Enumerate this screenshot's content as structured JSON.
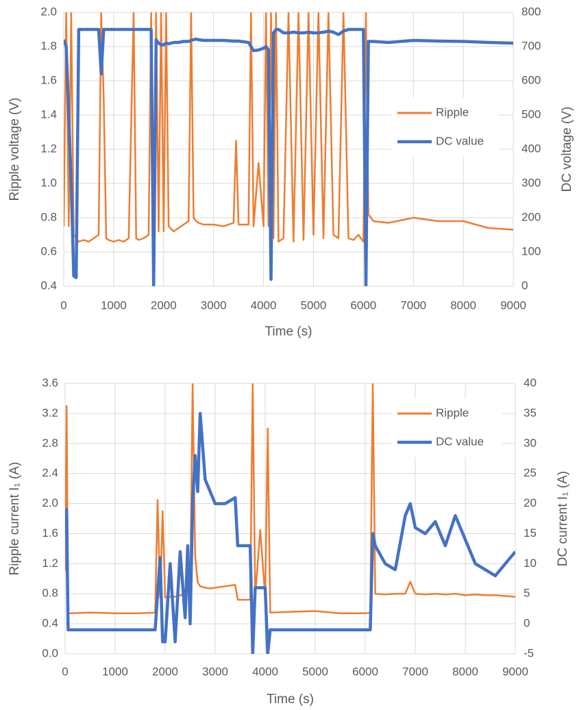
{
  "chart_data": [
    {
      "type": "line",
      "x_label": "Time (s)",
      "y_label": "Ripple voltage (V)",
      "y2_label": "DC voltage (V)",
      "xlim": [
        0,
        9000
      ],
      "xticks": [
        0,
        1000,
        2000,
        3000,
        4000,
        5000,
        6000,
        7000,
        8000,
        9000
      ],
      "ylim": [
        0.4,
        2.0
      ],
      "yticks": [
        0.4,
        0.6,
        0.8,
        {
          "value": 1,
          "label": "1.0"
        },
        1.2,
        1.4,
        1.6,
        1.8,
        {
          "value": 2,
          "label": "2.0"
        }
      ],
      "y2lim": [
        0,
        800
      ],
      "y2ticks": [
        0,
        100,
        200,
        300,
        400,
        500,
        600,
        700,
        800
      ],
      "grid": true,
      "legend": "right",
      "x": [
        0,
        50,
        100,
        150,
        200,
        250,
        300,
        400,
        500,
        600,
        700,
        750,
        800,
        850,
        900,
        1000,
        1100,
        1200,
        1300,
        1400,
        1450,
        1500,
        1600,
        1700,
        1750,
        1800,
        1850,
        1900,
        1950,
        2000,
        2050,
        2100,
        2200,
        2300,
        2400,
        2500,
        2550,
        2600,
        2650,
        2700,
        2800,
        3000,
        3200,
        3400,
        3450,
        3500,
        3700,
        3750,
        3800,
        3900,
        4000,
        4050,
        4100,
        4150,
        4200,
        4250,
        4300,
        4400,
        4500,
        4600,
        4700,
        4800,
        4900,
        5000,
        5100,
        5200,
        5300,
        5400,
        5500,
        5600,
        5700,
        5800,
        5900,
        6000,
        6050,
        6100,
        6200,
        6500,
        7000,
        7500,
        8000,
        8500,
        9000
      ],
      "series": [
        {
          "name": "Ripple",
          "color": "#ED7D31",
          "axis": "y",
          "values": [
            0.75,
            2.0,
            0.75,
            2.0,
            0.7,
            0.68,
            0.66,
            0.67,
            0.66,
            0.68,
            0.7,
            2.0,
            1.5,
            0.68,
            0.67,
            0.66,
            0.67,
            0.66,
            0.68,
            2.0,
            0.68,
            0.67,
            0.68,
            0.7,
            2.0,
            0.7,
            2.0,
            0.72,
            2.0,
            0.72,
            2.0,
            0.75,
            0.72,
            0.74,
            0.76,
            0.78,
            2.0,
            0.8,
            0.78,
            0.77,
            0.76,
            0.76,
            0.75,
            0.77,
            1.25,
            0.76,
            0.76,
            2.0,
            0.75,
            1.12,
            0.75,
            2.0,
            0.75,
            2.0,
            0.68,
            2.0,
            0.66,
            0.68,
            2.0,
            0.66,
            2.0,
            0.67,
            2.0,
            0.7,
            2.0,
            0.68,
            2.0,
            0.7,
            0.68,
            2.0,
            0.68,
            0.67,
            0.7,
            0.66,
            2.0,
            0.82,
            0.78,
            0.77,
            0.8,
            0.78,
            0.78,
            0.74,
            0.73
          ]
        },
        {
          "name": "DC value",
          "color": "#4472C4",
          "axis": "y2",
          "values": [
            720,
            700,
            500,
            300,
            30,
            25,
            750,
            750,
            750,
            750,
            750,
            620,
            750,
            750,
            750,
            750,
            750,
            750,
            750,
            750,
            750,
            750,
            750,
            750,
            750,
            0,
            720,
            710,
            705,
            705,
            710,
            708,
            712,
            712,
            715,
            715,
            718,
            720,
            722,
            720,
            718,
            718,
            718,
            716,
            716,
            716,
            712,
            700,
            688,
            690,
            695,
            700,
            690,
            20,
            740,
            750,
            750,
            740,
            740,
            742,
            740,
            740,
            742,
            740,
            740,
            742,
            745,
            742,
            735,
            745,
            750,
            750,
            750,
            750,
            0,
            715,
            715,
            712,
            718,
            716,
            715,
            712,
            710
          ]
        }
      ]
    },
    {
      "type": "line",
      "x_label": "Time (s)",
      "y_label": "Ripple current I₁ (A)",
      "y2_label": "DC current I₁ (A)",
      "xlim": [
        0,
        9000
      ],
      "xticks": [
        0,
        1000,
        2000,
        3000,
        4000,
        5000,
        6000,
        7000,
        8000,
        9000
      ],
      "ylim": [
        0,
        3.6
      ],
      "yticks": [
        {
          "value": 0,
          "label": "0.0"
        },
        0.4,
        0.8,
        1.2,
        1.6,
        {
          "value": 2,
          "label": "2.0"
        },
        2.4,
        2.8,
        3.2,
        3.6
      ],
      "y2lim": [
        -5,
        40
      ],
      "y2ticks": [
        -5,
        0,
        5,
        10,
        15,
        20,
        25,
        30,
        35,
        40
      ],
      "grid": true,
      "legend": "upper right",
      "x": [
        0,
        30,
        60,
        100,
        500,
        1000,
        1500,
        1800,
        1850,
        1900,
        1950,
        2000,
        2100,
        2200,
        2300,
        2400,
        2450,
        2500,
        2550,
        2600,
        2650,
        2700,
        2800,
        2900,
        3000,
        3200,
        3400,
        3450,
        3700,
        3750,
        3800,
        3900,
        4000,
        4050,
        4100,
        4500,
        5000,
        5500,
        6000,
        6100,
        6150,
        6200,
        6400,
        6600,
        6800,
        6900,
        7000,
        7200,
        7400,
        7600,
        7800,
        8000,
        8200,
        8400,
        8600,
        8800,
        9000
      ],
      "series": [
        {
          "name": "Ripple",
          "color": "#ED7D31",
          "axis": "y",
          "values": [
            1.1,
            3.3,
            0.55,
            0.54,
            0.55,
            0.54,
            0.54,
            0.55,
            2.05,
            0.75,
            1.9,
            0.75,
            0.76,
            0.76,
            0.78,
            0.78,
            0.8,
            0.8,
            3.6,
            1.3,
            0.95,
            0.9,
            0.88,
            0.87,
            0.88,
            0.9,
            0.92,
            0.72,
            0.72,
            3.6,
            0.75,
            1.65,
            0.76,
            3.0,
            0.55,
            0.56,
            0.57,
            0.54,
            0.54,
            0.55,
            3.6,
            0.8,
            0.79,
            0.8,
            0.8,
            0.96,
            0.8,
            0.79,
            0.8,
            0.79,
            0.8,
            0.78,
            0.79,
            0.78,
            0.78,
            0.77,
            0.76
          ]
        },
        {
          "name": "DC value",
          "color": "#4472C4",
          "axis": "y2",
          "values": [
            15,
            19,
            -1,
            -1,
            -1,
            -1,
            -1,
            -1,
            5,
            11,
            -3,
            -3,
            10,
            -3,
            12,
            1,
            13,
            0,
            20,
            28,
            22,
            35,
            24,
            22,
            20,
            20,
            21,
            13,
            13,
            -5,
            6,
            6,
            6,
            -5,
            -1,
            -1,
            -1,
            -1,
            -1,
            -1,
            15,
            13,
            10,
            9,
            18,
            20,
            16,
            15,
            17,
            13,
            18,
            14,
            10,
            9,
            8,
            10,
            12
          ]
        }
      ]
    }
  ]
}
